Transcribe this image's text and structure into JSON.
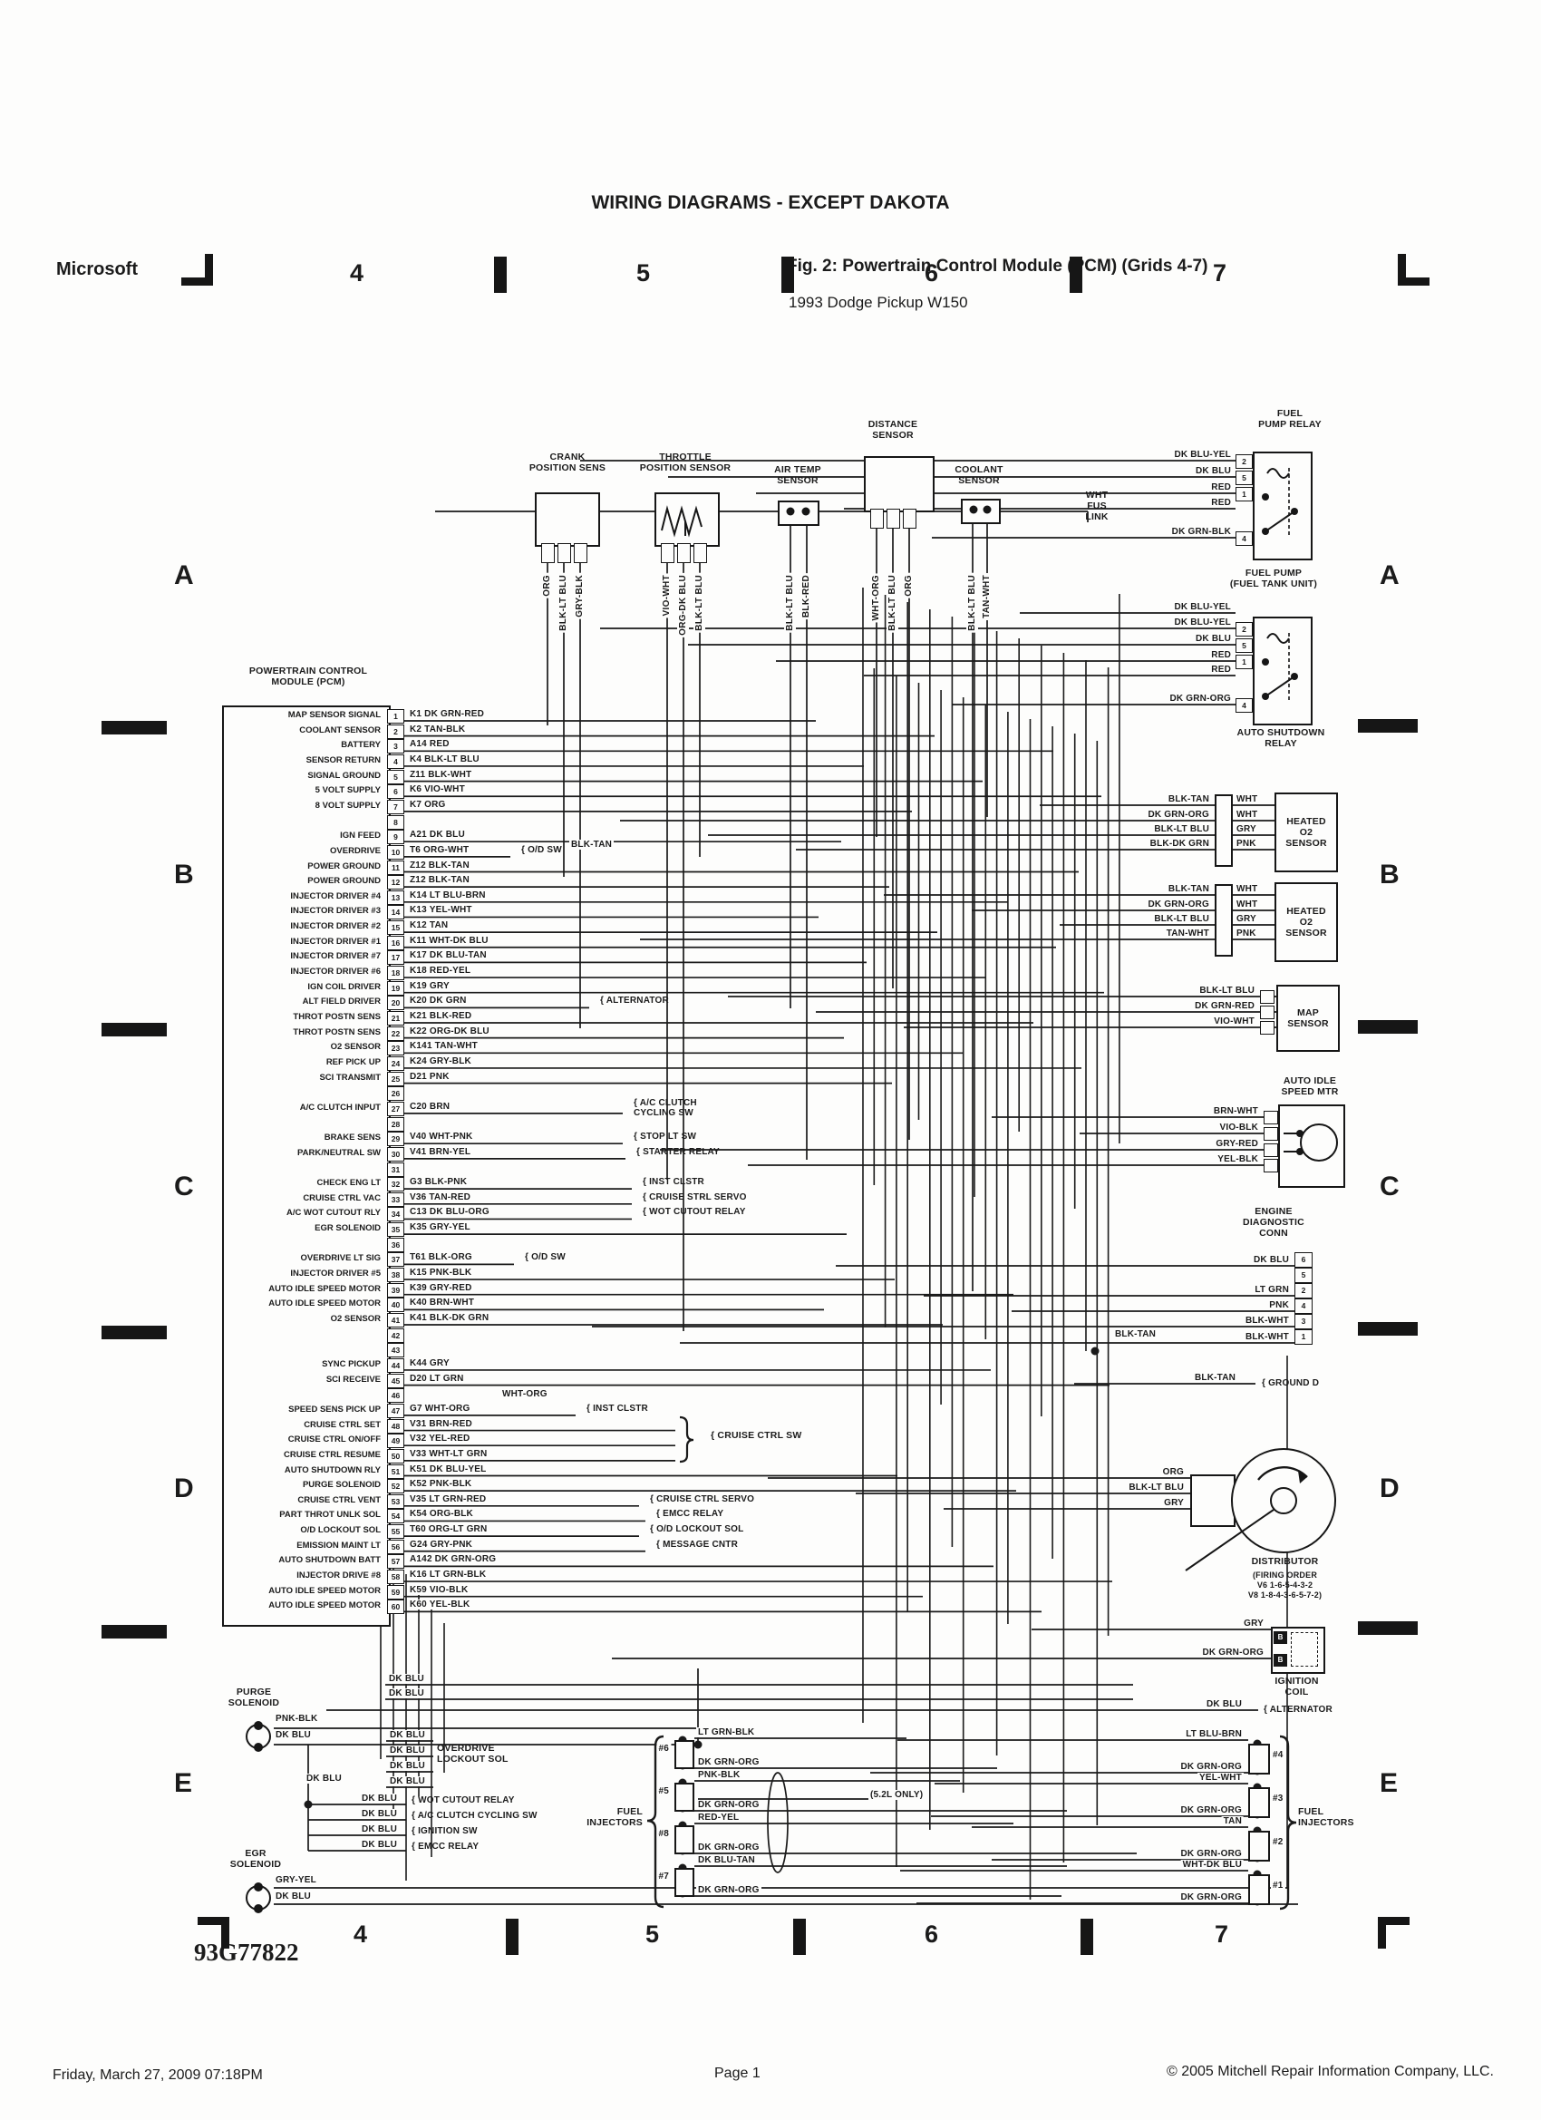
{
  "header": {
    "title": "WIRING DIAGRAMS - EXCEPT DAKOTA",
    "brand": "Microsoft",
    "fig_title": "Fig. 2: Powertrain Control Module (PCM) (Grids 4-7)",
    "fig_subtitle": "1993 Dodge Pickup W150"
  },
  "footer": {
    "date": "Friday, March 27, 2009  07:18PM",
    "page": "Page 1",
    "copyright": "© 2005 Mitchell Repair Information Company, LLC."
  },
  "drawing_number": "93G77822",
  "grid": {
    "top_numbers": [
      "4",
      "5",
      "6",
      "7"
    ],
    "bottom_numbers": [
      "4",
      "5",
      "6",
      "7"
    ],
    "left_letters": [
      "A",
      "B",
      "C",
      "D",
      "E"
    ],
    "right_letters": [
      "A",
      "B",
      "C",
      "D",
      "E"
    ]
  },
  "pcm": {
    "label": "POWERTRAIN CONTROL\nMODULE (PCM)",
    "pins": [
      {
        "n": "1",
        "fn": "MAP SENSOR SIGNAL",
        "wire": "K1 DK GRN-RED",
        "note": ""
      },
      {
        "n": "2",
        "fn": "COOLANT SENSOR",
        "wire": "K2 TAN-BLK",
        "note": ""
      },
      {
        "n": "3",
        "fn": "BATTERY",
        "wire": "A14 RED",
        "note": ""
      },
      {
        "n": "4",
        "fn": "SENSOR RETURN",
        "wire": "K4 BLK-LT BLU",
        "note": ""
      },
      {
        "n": "5",
        "fn": "SIGNAL GROUND",
        "wire": "Z11 BLK-WHT",
        "note": ""
      },
      {
        "n": "6",
        "fn": "5 VOLT SUPPLY",
        "wire": "K6 VIO-WHT",
        "note": ""
      },
      {
        "n": "7",
        "fn": "8 VOLT SUPPLY",
        "wire": "K7 ORG",
        "note": ""
      },
      {
        "n": "8",
        "fn": "",
        "wire": "",
        "note": ""
      },
      {
        "n": "9",
        "fn": "IGN FEED",
        "wire": "A21 DK BLU",
        "note": ""
      },
      {
        "n": "10",
        "fn": "OVERDRIVE",
        "wire": "T6 ORG-WHT",
        "note": "O/D SW"
      },
      {
        "n": "11",
        "fn": "POWER GROUND",
        "wire": "Z12 BLK-TAN",
        "note": ""
      },
      {
        "n": "12",
        "fn": "POWER GROUND",
        "wire": "Z12 BLK-TAN",
        "note": ""
      },
      {
        "n": "13",
        "fn": "INJECTOR DRIVER #4",
        "wire": "K14 LT BLU-BRN",
        "note": ""
      },
      {
        "n": "14",
        "fn": "INJECTOR DRIVER #3",
        "wire": "K13 YEL-WHT",
        "note": ""
      },
      {
        "n": "15",
        "fn": "INJECTOR DRIVER #2",
        "wire": "K12 TAN",
        "note": ""
      },
      {
        "n": "16",
        "fn": "INJECTOR DRIVER #1",
        "wire": "K11 WHT-DK BLU",
        "note": ""
      },
      {
        "n": "17",
        "fn": "INJECTOR DRIVER #7",
        "wire": "K17 DK BLU-TAN",
        "note": ""
      },
      {
        "n": "18",
        "fn": "INJECTOR DRIVER #6",
        "wire": "K18 RED-YEL",
        "note": ""
      },
      {
        "n": "19",
        "fn": "IGN COIL DRIVER",
        "wire": "K19 GRY",
        "note": ""
      },
      {
        "n": "20",
        "fn": "ALT FIELD DRIVER",
        "wire": "K20 DK GRN",
        "note": "ALTERNATOR"
      },
      {
        "n": "21",
        "fn": "THROT POSTN SENS",
        "wire": "K21 BLK-RED",
        "note": ""
      },
      {
        "n": "22",
        "fn": "THROT POSTN SENS",
        "wire": "K22 ORG-DK BLU",
        "note": ""
      },
      {
        "n": "23",
        "fn": "O2 SENSOR",
        "wire": "K141 TAN-WHT",
        "note": ""
      },
      {
        "n": "24",
        "fn": "REF PICK UP",
        "wire": "K24 GRY-BLK",
        "note": ""
      },
      {
        "n": "25",
        "fn": "SCI TRANSMIT",
        "wire": "D21 PNK",
        "note": ""
      },
      {
        "n": "26",
        "fn": "",
        "wire": "",
        "note": ""
      },
      {
        "n": "27",
        "fn": "A/C CLUTCH INPUT",
        "wire": "C20 BRN",
        "note": "A/C CLUTCH\nCYCLING SW"
      },
      {
        "n": "28",
        "fn": "",
        "wire": "",
        "note": ""
      },
      {
        "n": "29",
        "fn": "BRAKE SENS",
        "wire": "V40 WHT-PNK",
        "note": "STOP LT SW"
      },
      {
        "n": "30",
        "fn": "PARK/NEUTRAL SW",
        "wire": "V41 BRN-YEL",
        "note": "STARTER RELAY"
      },
      {
        "n": "31",
        "fn": "",
        "wire": "",
        "note": ""
      },
      {
        "n": "32",
        "fn": "CHECK ENG LT",
        "wire": "G3 BLK-PNK",
        "note": "INST CLSTR"
      },
      {
        "n": "33",
        "fn": "CRUISE CTRL VAC",
        "wire": "V36 TAN-RED",
        "note": "CRUISE STRL SERVO"
      },
      {
        "n": "34",
        "fn": "A/C WOT CUTOUT RLY",
        "wire": "C13 DK BLU-ORG",
        "note": "WOT CUTOUT RELAY"
      },
      {
        "n": "35",
        "fn": "EGR SOLENOID",
        "wire": "K35 GRY-YEL",
        "note": ""
      },
      {
        "n": "36",
        "fn": "",
        "wire": "",
        "note": ""
      },
      {
        "n": "37",
        "fn": "OVERDRIVE LT SIG",
        "wire": "T61 BLK-ORG",
        "note": "O/D SW"
      },
      {
        "n": "38",
        "fn": "INJECTOR DRIVER #5",
        "wire": "K15 PNK-BLK",
        "note": ""
      },
      {
        "n": "39",
        "fn": "AUTO IDLE SPEED MOTOR",
        "wire": "K39 GRY-RED",
        "note": ""
      },
      {
        "n": "40",
        "fn": "AUTO IDLE SPEED MOTOR",
        "wire": "K40 BRN-WHT",
        "note": ""
      },
      {
        "n": "41",
        "fn": "O2 SENSOR",
        "wire": "K41 BLK-DK GRN",
        "note": ""
      },
      {
        "n": "42",
        "fn": "",
        "wire": "",
        "note": ""
      },
      {
        "n": "43",
        "fn": "",
        "wire": "",
        "note": ""
      },
      {
        "n": "44",
        "fn": "SYNC PICKUP",
        "wire": "K44 GRY",
        "note": ""
      },
      {
        "n": "45",
        "fn": "SCI RECEIVE",
        "wire": "D20 LT GRN",
        "note": ""
      },
      {
        "n": "46",
        "fn": "",
        "wire": "",
        "note": ""
      },
      {
        "n": "47",
        "fn": "SPEED SENS PICK UP",
        "wire": "G7 WHT-ORG",
        "note": "INST CLSTR"
      },
      {
        "n": "48",
        "fn": "CRUISE CTRL SET",
        "wire": "V31 BRN-RED",
        "note": ""
      },
      {
        "n": "49",
        "fn": "CRUISE CTRL ON/OFF",
        "wire": "V32 YEL-RED",
        "note": ""
      },
      {
        "n": "50",
        "fn": "CRUISE CTRL RESUME",
        "wire": "V33 WHT-LT GRN",
        "note": ""
      },
      {
        "n": "51",
        "fn": "AUTO SHUTDOWN RLY",
        "wire": "K51 DK BLU-YEL",
        "note": ""
      },
      {
        "n": "52",
        "fn": "PURGE SOLENOID",
        "wire": "K52 PNK-BLK",
        "note": ""
      },
      {
        "n": "53",
        "fn": "CRUISE CTRL VENT",
        "wire": "V35 LT GRN-RED",
        "note": "CRUISE CTRL SERVO"
      },
      {
        "n": "54",
        "fn": "PART THROT UNLK SOL",
        "wire": "K54 ORG-BLK",
        "note": "EMCC RELAY"
      },
      {
        "n": "55",
        "fn": "O/D LOCKOUT SOL",
        "wire": "T60 ORG-LT GRN",
        "note": "O/D LOCKOUT SOL"
      },
      {
        "n": "56",
        "fn": "EMISSION MAINT LT",
        "wire": "G24 GRY-PNK",
        "note": "MESSAGE CNTR"
      },
      {
        "n": "57",
        "fn": "AUTO SHUTDOWN BATT",
        "wire": "A142 DK GRN-ORG",
        "note": ""
      },
      {
        "n": "58",
        "fn": "INJECTOR DRIVE #8",
        "wire": "K16 LT GRN-BLK",
        "note": ""
      },
      {
        "n": "59",
        "fn": "AUTO IDLE SPEED MOTOR",
        "wire": "K59 VIO-BLK",
        "note": ""
      },
      {
        "n": "60",
        "fn": "AUTO IDLE SPEED MOTOR",
        "wire": "K60 YEL-BLK",
        "note": ""
      }
    ]
  },
  "top_sensors": [
    {
      "name": "CRANK\nPOSITION SENS",
      "wires": [
        "ORG",
        "BLK-LT BLU",
        "GRY-BLK"
      ]
    },
    {
      "name": "THROTTLE\nPOSITION SENSOR",
      "wires": [
        "VIO-WHT",
        "ORG-DK BLU",
        "BLK-LT BLU"
      ]
    },
    {
      "name": "AIR TEMP\nSENSOR",
      "wires": [
        "BLK-LT BLU",
        "BLK-RED"
      ]
    },
    {
      "name": "DISTANCE\nSENSOR",
      "wires": [
        "WHT-ORG",
        "BLK-LT BLU",
        "ORG"
      ]
    },
    {
      "name": "COOLANT\nSENSOR",
      "wires": [
        "BLK-LT BLU",
        "TAN-WHT"
      ]
    }
  ],
  "right": {
    "fuel_pump_relay": {
      "name": "FUEL\nPUMP RELAY",
      "rows": [
        {
          "wire": "DK BLU-YEL",
          "pin": "2"
        },
        {
          "wire": "DK BLU",
          "pin": "5"
        },
        {
          "wire": "RED",
          "pin": "1"
        },
        {
          "wire": "RED",
          "pin": ""
        },
        {
          "wire": "DK GRN-BLK",
          "pin": "4"
        }
      ],
      "side_label": "WHT\nFUS\nLINK",
      "below_label": "FUEL PUMP\n(FUEL TANK UNIT)"
    },
    "auto_shutdown_relay": {
      "name": "AUTO SHUTDOWN\nRELAY",
      "rows": [
        {
          "wire": "DK BLU-YEL",
          "pin": ""
        },
        {
          "wire": "DK BLU-YEL",
          "pin": "2"
        },
        {
          "wire": "DK BLU",
          "pin": "5"
        },
        {
          "wire": "RED",
          "pin": "1"
        },
        {
          "wire": "RED",
          "pin": ""
        },
        {
          "wire": "DK GRN-ORG",
          "pin": "4"
        }
      ]
    },
    "heated_o2_upper": {
      "name": "HEATED\nO2\nSENSOR",
      "rows": [
        {
          "left": "BLK-TAN",
          "right": "WHT"
        },
        {
          "left": "DK GRN-ORG",
          "right": "WHT"
        },
        {
          "left": "BLK-LT BLU",
          "right": "GRY"
        },
        {
          "left": "BLK-DK GRN",
          "right": "PNK"
        }
      ]
    },
    "heated_o2_lower": {
      "name": "HEATED\nO2\nSENSOR",
      "rows": [
        {
          "left": "BLK-TAN",
          "right": "WHT"
        },
        {
          "left": "DK GRN-ORG",
          "right": "WHT"
        },
        {
          "left": "BLK-LT BLU",
          "right": "GRY"
        },
        {
          "left": "TAN-WHT",
          "right": "PNK"
        }
      ]
    },
    "map_sensor": {
      "name": "MAP\nSENSOR",
      "wires": [
        "BLK-LT BLU",
        "DK GRN-RED",
        "VIO-WHT"
      ]
    },
    "auto_idle_speed_motor": {
      "name": "AUTO IDLE\nSPEED MTR",
      "wires": [
        "BRN-WHT",
        "VIO-BLK",
        "GRY-RED",
        "YEL-BLK"
      ]
    },
    "engine_diag_conn": {
      "name": "ENGINE\nDIAGNOSTIC\nCONN",
      "pins": [
        "6",
        "5",
        "2",
        "4",
        "3",
        "1"
      ],
      "wires": [
        "DK BLU",
        "LT GRN",
        "PNK",
        "BLK-WHT",
        "BLK-WHT"
      ],
      "left_wire": "BLK-TAN",
      "ground_wire": "BLK-TAN",
      "ground_label": "GROUND D"
    },
    "distributor": {
      "name": "DISTRIBUTOR",
      "firing_order": "(FIRING ORDER\nV6 1-6-5-4-3-2\nV8 1-8-4-3-6-5-7-2)",
      "wires": [
        "ORG",
        "BLK-LT BLU",
        "GRY"
      ]
    },
    "ignition_coil": {
      "name": "IGNITION\nCOIL",
      "rows": [
        {
          "wire": "GRY",
          "pin": "B"
        },
        {
          "wire": "DK GRN-ORG",
          "pin": "B"
        }
      ]
    },
    "alternator_feed": {
      "wire": "DK BLU",
      "target": "ALTERNATOR"
    }
  },
  "injectors_right": {
    "brace_label": "FUEL\nINJECTORS",
    "items": [
      {
        "id": "#4",
        "top": "LT BLU-BRN",
        "bottom": "DK GRN-ORG"
      },
      {
        "id": "#3",
        "top": "YEL-WHT",
        "bottom": "DK GRN-ORG"
      },
      {
        "id": "#2",
        "top": "TAN",
        "bottom": "DK GRN-ORG"
      },
      {
        "id": "#1",
        "top": "WHT-DK BLU",
        "bottom": "DK GRN-ORG"
      }
    ]
  },
  "injectors_left": {
    "brace_label": "FUEL\nINJECTORS",
    "note": "(5.2L ONLY)",
    "items": [
      {
        "id": "#6",
        "top": "LT GRN-BLK",
        "bottom": "DK GRN-ORG"
      },
      {
        "id": "#5",
        "top": "PNK-BLK",
        "bottom": "DK GRN-ORG"
      },
      {
        "id": "#8",
        "top": "RED-YEL",
        "bottom": "DK GRN-ORG"
      },
      {
        "id": "#7",
        "top": "DK BLU-TAN",
        "bottom": "DK GRN-ORG"
      }
    ]
  },
  "bottom_left": {
    "purge_solenoid": {
      "name": "PURGE\nSOLENOID",
      "top_wire": "PNK-BLK",
      "bottom_wire": "DK BLU"
    },
    "egr_solenoid": {
      "name": "EGR\nSOLENOID",
      "top_wire": "GRY-YEL",
      "bottom_wire": "DK BLU"
    },
    "feed_wires": [
      "DK BLU",
      "DK BLU"
    ],
    "od_lockout": {
      "wires": [
        "DK BLU",
        "DK BLU",
        "DK BLU",
        "DK BLU"
      ],
      "target": "OVERDRIVE\nLOCKOUT SOL"
    },
    "junction_wire": "DK BLU",
    "branches": [
      {
        "wire": "DK BLU",
        "target": "WOT CUTOUT RELAY"
      },
      {
        "wire": "DK BLU",
        "target": "A/C CLUTCH CYCLING SW"
      },
      {
        "wire": "DK BLU",
        "target": "IGNITION SW"
      },
      {
        "wire": "DK BLU",
        "target": "EMCC RELAY"
      }
    ]
  },
  "annotations": {
    "od_sw_blk_tan": "BLK-TAN",
    "pin47_wire": "WHT-ORG",
    "cruise_sw_label": "CRUISE CTRL SW"
  }
}
